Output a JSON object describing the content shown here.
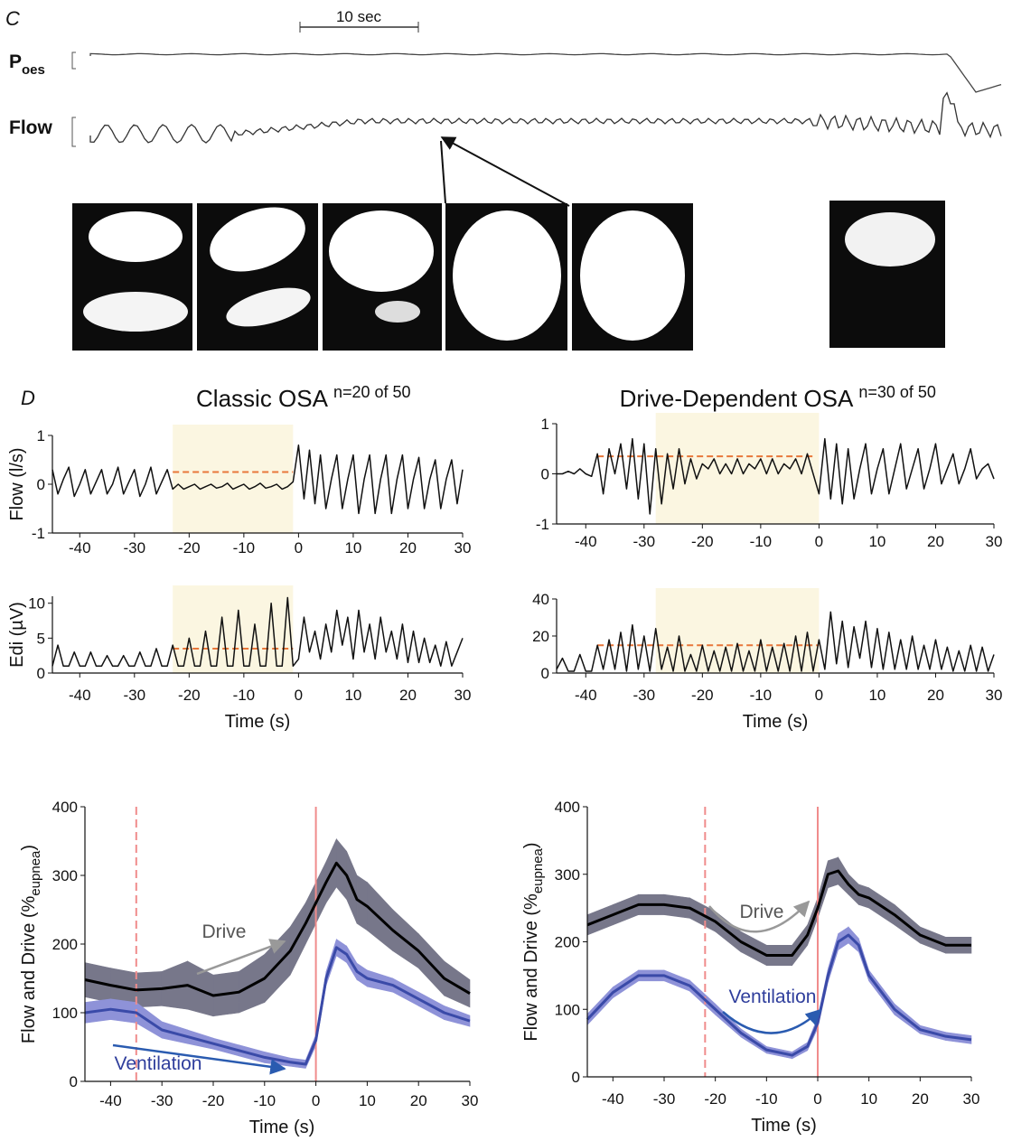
{
  "panel_c": {
    "label": "C",
    "scale_bar": "10 sec",
    "p": "P",
    "p_sub": "oes",
    "flow": "Flow"
  },
  "panel_d_label": "D",
  "chart_data": [
    {
      "type": "line",
      "title": "Classic OSA",
      "title_note": "n=20 of 50",
      "ylabel": "Flow (l/s)",
      "xlim": [
        -45,
        30
      ],
      "ylim": [
        -1,
        1
      ],
      "xticks": [
        -40,
        -30,
        -20,
        -10,
        0,
        10,
        20,
        30
      ],
      "yticks": [
        -1,
        0,
        1
      ],
      "shade": [
        -23,
        -1
      ],
      "baselines": [
        {
          "x": [
            -23,
            -1
          ],
          "y": 0.25
        }
      ],
      "x": [
        -45,
        -44,
        -43,
        -42,
        -41,
        -40,
        -39,
        -38,
        -37,
        -36,
        -35,
        -34,
        -33,
        -32,
        -31,
        -30,
        -29,
        -28,
        -27,
        -26,
        -25,
        -24,
        -23,
        -22,
        -21,
        -20,
        -19,
        -18,
        -17,
        -16,
        -15,
        -14,
        -13,
        -12,
        -11,
        -10,
        -9,
        -8,
        -7,
        -6,
        -5,
        -4,
        -3,
        -2,
        -1,
        0,
        1,
        2,
        3,
        4,
        5,
        6,
        7,
        8,
        9,
        10,
        11,
        12,
        13,
        14,
        15,
        16,
        17,
        18,
        19,
        20,
        21,
        22,
        23,
        24,
        25,
        26,
        27,
        28,
        29,
        30
      ],
      "series": [
        {
          "color": "#111111",
          "values": [
            0.3,
            -0.2,
            0.1,
            0.35,
            -0.25,
            0,
            0.3,
            -0.2,
            0.05,
            0.3,
            -0.2,
            0,
            0.35,
            -0.2,
            0.05,
            0.3,
            -0.25,
            0,
            0.35,
            -0.2,
            0.05,
            0.3,
            -0.1,
            0,
            -0.1,
            -0.05,
            0,
            -0.1,
            -0.05,
            0,
            -0.08,
            -0.05,
            0.02,
            -0.1,
            -0.05,
            0,
            -0.1,
            -0.05,
            0.02,
            -0.08,
            -0.05,
            0,
            -0.1,
            -0.05,
            0.05,
            0.8,
            -0.3,
            0.7,
            -0.4,
            0.6,
            -0.5,
            0.1,
            0.6,
            -0.5,
            0.1,
            0.6,
            -0.6,
            0.1,
            0.6,
            -0.6,
            0.1,
            0.6,
            -0.6,
            0.1,
            0.6,
            -0.5,
            0.1,
            0.55,
            -0.5,
            0.1,
            0.5,
            -0.5,
            0.1,
            0.5,
            -0.4,
            0.3
          ]
        }
      ]
    },
    {
      "type": "line",
      "ylabel": "Edi (µV)",
      "xlabel": "Time (s)",
      "xlim": [
        -45,
        30
      ],
      "ylim": [
        0,
        11
      ],
      "xticks": [
        -40,
        -30,
        -20,
        -10,
        0,
        10,
        20,
        30
      ],
      "yticks": [
        0,
        5,
        10
      ],
      "shade": [
        -23,
        -1
      ],
      "baselines": [
        {
          "x": [
            -23,
            -1
          ],
          "y": 3.5
        }
      ],
      "x": [
        -45,
        -44,
        -43,
        -42,
        -41,
        -40,
        -39,
        -38,
        -37,
        -36,
        -35,
        -34,
        -33,
        -32,
        -31,
        -30,
        -29,
        -28,
        -27,
        -26,
        -25,
        -24,
        -23,
        -22,
        -21,
        -20,
        -19,
        -18,
        -17,
        -16,
        -15,
        -14,
        -13,
        -12,
        -11,
        -10,
        -9,
        -8,
        -7,
        -6,
        -5,
        -4,
        -3,
        -2,
        -1,
        0,
        1,
        2,
        3,
        4,
        5,
        6,
        7,
        8,
        9,
        10,
        11,
        12,
        13,
        14,
        15,
        16,
        17,
        18,
        19,
        20,
        21,
        22,
        23,
        24,
        25,
        26,
        27,
        28,
        29,
        30
      ],
      "series": [
        {
          "color": "#111111",
          "values": [
            1,
            4,
            1,
            1,
            3,
            1,
            1,
            3,
            1,
            1,
            2.5,
            1,
            1,
            2.5,
            1,
            1,
            3,
            1,
            1,
            3.5,
            1,
            1,
            4,
            1,
            1,
            5,
            1,
            1,
            6,
            1,
            1,
            8,
            1,
            1,
            9,
            1,
            1,
            7,
            1,
            1,
            10,
            1,
            1,
            10.8,
            1,
            2,
            8,
            3,
            6,
            2,
            7,
            3,
            9,
            4,
            8,
            2,
            9,
            3,
            7,
            2,
            8,
            3,
            6,
            2,
            7,
            1.5,
            6,
            1.5,
            5,
            1.5,
            4,
            1,
            4.5,
            1,
            3,
            5
          ]
        }
      ]
    },
    {
      "type": "line",
      "title": "Drive-Dependent OSA",
      "title_note": "n=30 of 50",
      "xlim": [
        -45,
        30
      ],
      "ylim": [
        -1,
        1
      ],
      "xticks": [
        -40,
        -30,
        -20,
        -10,
        0,
        10,
        20,
        30
      ],
      "yticks": [
        -1,
        0,
        1
      ],
      "shade": [
        -28,
        0
      ],
      "baselines": [
        {
          "x": [
            -38,
            -1
          ],
          "y": 0.35
        }
      ],
      "x": [
        -45,
        -44,
        -43,
        -42,
        -41,
        -40,
        -39,
        -38,
        -37,
        -36,
        -35,
        -34,
        -33,
        -32,
        -31,
        -30,
        -29,
        -28,
        -27,
        -26,
        -25,
        -24,
        -23,
        -22,
        -21,
        -20,
        -19,
        -18,
        -17,
        -16,
        -15,
        -14,
        -13,
        -12,
        -11,
        -10,
        -9,
        -8,
        -7,
        -6,
        -5,
        -4,
        -3,
        -2,
        -1,
        0,
        1,
        2,
        3,
        4,
        5,
        6,
        7,
        8,
        9,
        10,
        11,
        12,
        13,
        14,
        15,
        16,
        17,
        18,
        19,
        20,
        21,
        22,
        23,
        24,
        25,
        26,
        27,
        28,
        29,
        30
      ],
      "series": [
        {
          "color": "#111111",
          "values": [
            0,
            0,
            0.05,
            0,
            0.1,
            0,
            -0.05,
            0.4,
            -0.4,
            0.5,
            0,
            0.6,
            -0.3,
            0.7,
            -0.5,
            0.6,
            -0.8,
            0.5,
            -0.6,
            0.4,
            -0.3,
            0.5,
            -0.2,
            0.3,
            -0.1,
            0.2,
            0.1,
            0.3,
            0,
            0.2,
            0,
            0.3,
            0,
            0.2,
            0.1,
            0.3,
            0,
            0.3,
            0,
            0.2,
            0.1,
            0.3,
            0,
            0.4,
            0,
            -0.4,
            0.7,
            -0.5,
            0.6,
            -0.6,
            0.5,
            -0.5,
            0.1,
            0.6,
            -0.4,
            0.1,
            0.5,
            -0.4,
            0.1,
            0.6,
            -0.3,
            0.1,
            0.5,
            -0.3,
            0.1,
            0.6,
            -0.2,
            0.1,
            0.4,
            -0.2,
            0.1,
            0.5,
            -0.1,
            0.1,
            0.2,
            -0.1
          ]
        }
      ]
    },
    {
      "type": "line",
      "xlabel": "Time (s)",
      "xlim": [
        -45,
        30
      ],
      "ylim": [
        0,
        40
      ],
      "xticks": [
        -40,
        -30,
        -20,
        -10,
        0,
        10,
        20,
        30
      ],
      "yticks": [
        0,
        20,
        40
      ],
      "shade": [
        -28,
        0
      ],
      "baselines": [
        {
          "x": [
            -38,
            0
          ],
          "y": 15
        }
      ],
      "x": [
        -45,
        -44,
        -43,
        -42,
        -41,
        -40,
        -39,
        -38,
        -37,
        -36,
        -35,
        -34,
        -33,
        -32,
        -31,
        -30,
        -29,
        -28,
        -27,
        -26,
        -25,
        -24,
        -23,
        -22,
        -21,
        -20,
        -19,
        -18,
        -17,
        -16,
        -15,
        -14,
        -13,
        -12,
        -11,
        -10,
        -9,
        -8,
        -7,
        -6,
        -5,
        -4,
        -3,
        -2,
        -1,
        0,
        1,
        2,
        3,
        4,
        5,
        6,
        7,
        8,
        9,
        10,
        11,
        12,
        13,
        14,
        15,
        16,
        17,
        18,
        19,
        20,
        21,
        22,
        23,
        24,
        25,
        26,
        27,
        28,
        29,
        30
      ],
      "series": [
        {
          "color": "#111111",
          "values": [
            2,
            8,
            1,
            1,
            10,
            1,
            1,
            15,
            2,
            18,
            2,
            22,
            1,
            26,
            2,
            20,
            1,
            24,
            2,
            14,
            1,
            20,
            1,
            10,
            1,
            15,
            1,
            12,
            1,
            14,
            1,
            16,
            1,
            12,
            1,
            18,
            1,
            14,
            1,
            16,
            1,
            20,
            1,
            22,
            1,
            18,
            2,
            33,
            5,
            28,
            3,
            25,
            8,
            28,
            3,
            24,
            2,
            22,
            2,
            18,
            2,
            20,
            2,
            15,
            2,
            18,
            2,
            14,
            1,
            12,
            1,
            15,
            1,
            14,
            1,
            10
          ]
        }
      ]
    },
    {
      "type": "line",
      "ylabel": "Flow and Drive (%",
      "ylabel_sub": "eupnea",
      "ylabel_tail": ")",
      "xlabel": "Time (s)",
      "xlim": [
        -45,
        30
      ],
      "ylim": [
        0,
        400
      ],
      "xticks": [
        -40,
        -30,
        -20,
        -10,
        0,
        10,
        20,
        30
      ],
      "yticks": [
        0,
        100,
        200,
        300,
        400
      ],
      "vlines": [
        {
          "value": -35,
          "dashed": true
        },
        {
          "value": 0,
          "dashed": false
        }
      ],
      "x": [
        -45,
        -40,
        -35,
        -30,
        -25,
        -20,
        -15,
        -10,
        -5,
        -2,
        0,
        2,
        4,
        6,
        8,
        10,
        15,
        20,
        25,
        30
      ],
      "series": [
        {
          "name": "Drive",
          "color": "#000000",
          "band_color": "#77778a",
          "values": [
            148,
            140,
            133,
            135,
            140,
            125,
            130,
            150,
            190,
            230,
            260,
            290,
            318,
            300,
            265,
            255,
            220,
            190,
            150,
            128
          ],
          "errors": [
            25,
            25,
            25,
            25,
            35,
            30,
            30,
            35,
            35,
            30,
            30,
            30,
            35,
            35,
            35,
            35,
            30,
            25,
            25,
            20
          ]
        },
        {
          "name": "Ventilation",
          "color": "#3a4aa8",
          "band_color": "#8e92d8",
          "values": [
            100,
            105,
            100,
            75,
            65,
            55,
            45,
            35,
            28,
            25,
            60,
            150,
            195,
            185,
            160,
            150,
            140,
            120,
            100,
            88
          ],
          "errors": [
            15,
            15,
            15,
            12,
            10,
            8,
            8,
            8,
            6,
            6,
            8,
            10,
            12,
            12,
            12,
            12,
            10,
            10,
            10,
            8
          ]
        }
      ]
    },
    {
      "type": "line",
      "ylabel": "Flow and Drive (%",
      "ylabel_sub": "eupnea",
      "ylabel_tail": ")",
      "xlabel": "Time (s)",
      "xlim": [
        -45,
        30
      ],
      "ylim": [
        0,
        400
      ],
      "xticks": [
        -40,
        -30,
        -20,
        -10,
        0,
        10,
        20,
        30
      ],
      "yticks": [
        0,
        100,
        200,
        300,
        400
      ],
      "vlines": [
        {
          "value": -22,
          "dashed": true
        },
        {
          "value": 0,
          "dashed": false
        }
      ],
      "x": [
        -45,
        -40,
        -35,
        -30,
        -25,
        -20,
        -15,
        -10,
        -5,
        -2,
        0,
        2,
        4,
        6,
        8,
        10,
        15,
        20,
        25,
        30
      ],
      "series": [
        {
          "name": "Drive",
          "color": "#000000",
          "band_color": "#77778a",
          "values": [
            225,
            240,
            255,
            255,
            250,
            230,
            200,
            180,
            180,
            210,
            250,
            300,
            305,
            285,
            270,
            265,
            240,
            210,
            195,
            195
          ],
          "errors": [
            15,
            15,
            15,
            15,
            15,
            15,
            15,
            15,
            15,
            15,
            15,
            20,
            20,
            15,
            15,
            15,
            15,
            12,
            12,
            12
          ]
        },
        {
          "name": "Ventilation",
          "color": "#3a4aa8",
          "band_color": "#8e92d8",
          "values": [
            85,
            125,
            150,
            150,
            135,
            100,
            65,
            40,
            32,
            45,
            80,
            150,
            200,
            210,
            195,
            150,
            100,
            70,
            60,
            55
          ],
          "errors": [
            8,
            8,
            8,
            8,
            8,
            8,
            6,
            5,
            5,
            6,
            8,
            10,
            12,
            12,
            10,
            8,
            8,
            6,
            6,
            6
          ]
        }
      ]
    }
  ]
}
